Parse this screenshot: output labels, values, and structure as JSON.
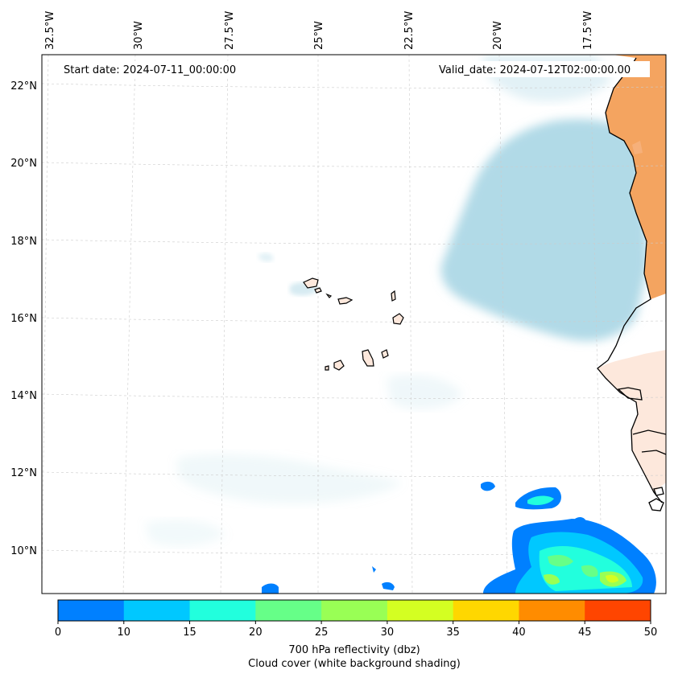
{
  "map": {
    "start_date": "Start date: 2024-07-11_00:00:00",
    "valid_date": "Valid_date: 2024-07-12T02:00:00.00",
    "lon_labels": [
      "32.5°W",
      "30°W",
      "27.5°W",
      "25°W",
      "22.5°W",
      "20°W",
      "17.5°W"
    ],
    "lat_labels": [
      "22°N",
      "20°N",
      "18°N",
      "16°N",
      "14°N",
      "12°N",
      "10°N"
    ]
  },
  "colorbar": {
    "ticks": [
      "0",
      "10",
      "15",
      "20",
      "25",
      "30",
      "35",
      "40",
      "45",
      "50"
    ],
    "colors": [
      "#0080ff",
      "#00c8ff",
      "#22ffdd",
      "#66ff88",
      "#99ff55",
      "#d4ff22",
      "#ffd700",
      "#ff8c00",
      "#ff4500"
    ],
    "label_line1": "700 hPa reflectivity (dbz)",
    "label_line2": "Cloud cover (white background shading)"
  },
  "colors": {
    "cloud": "#add8e6",
    "land_hot": "#f4a460",
    "land_warm": "#fde8dc"
  }
}
